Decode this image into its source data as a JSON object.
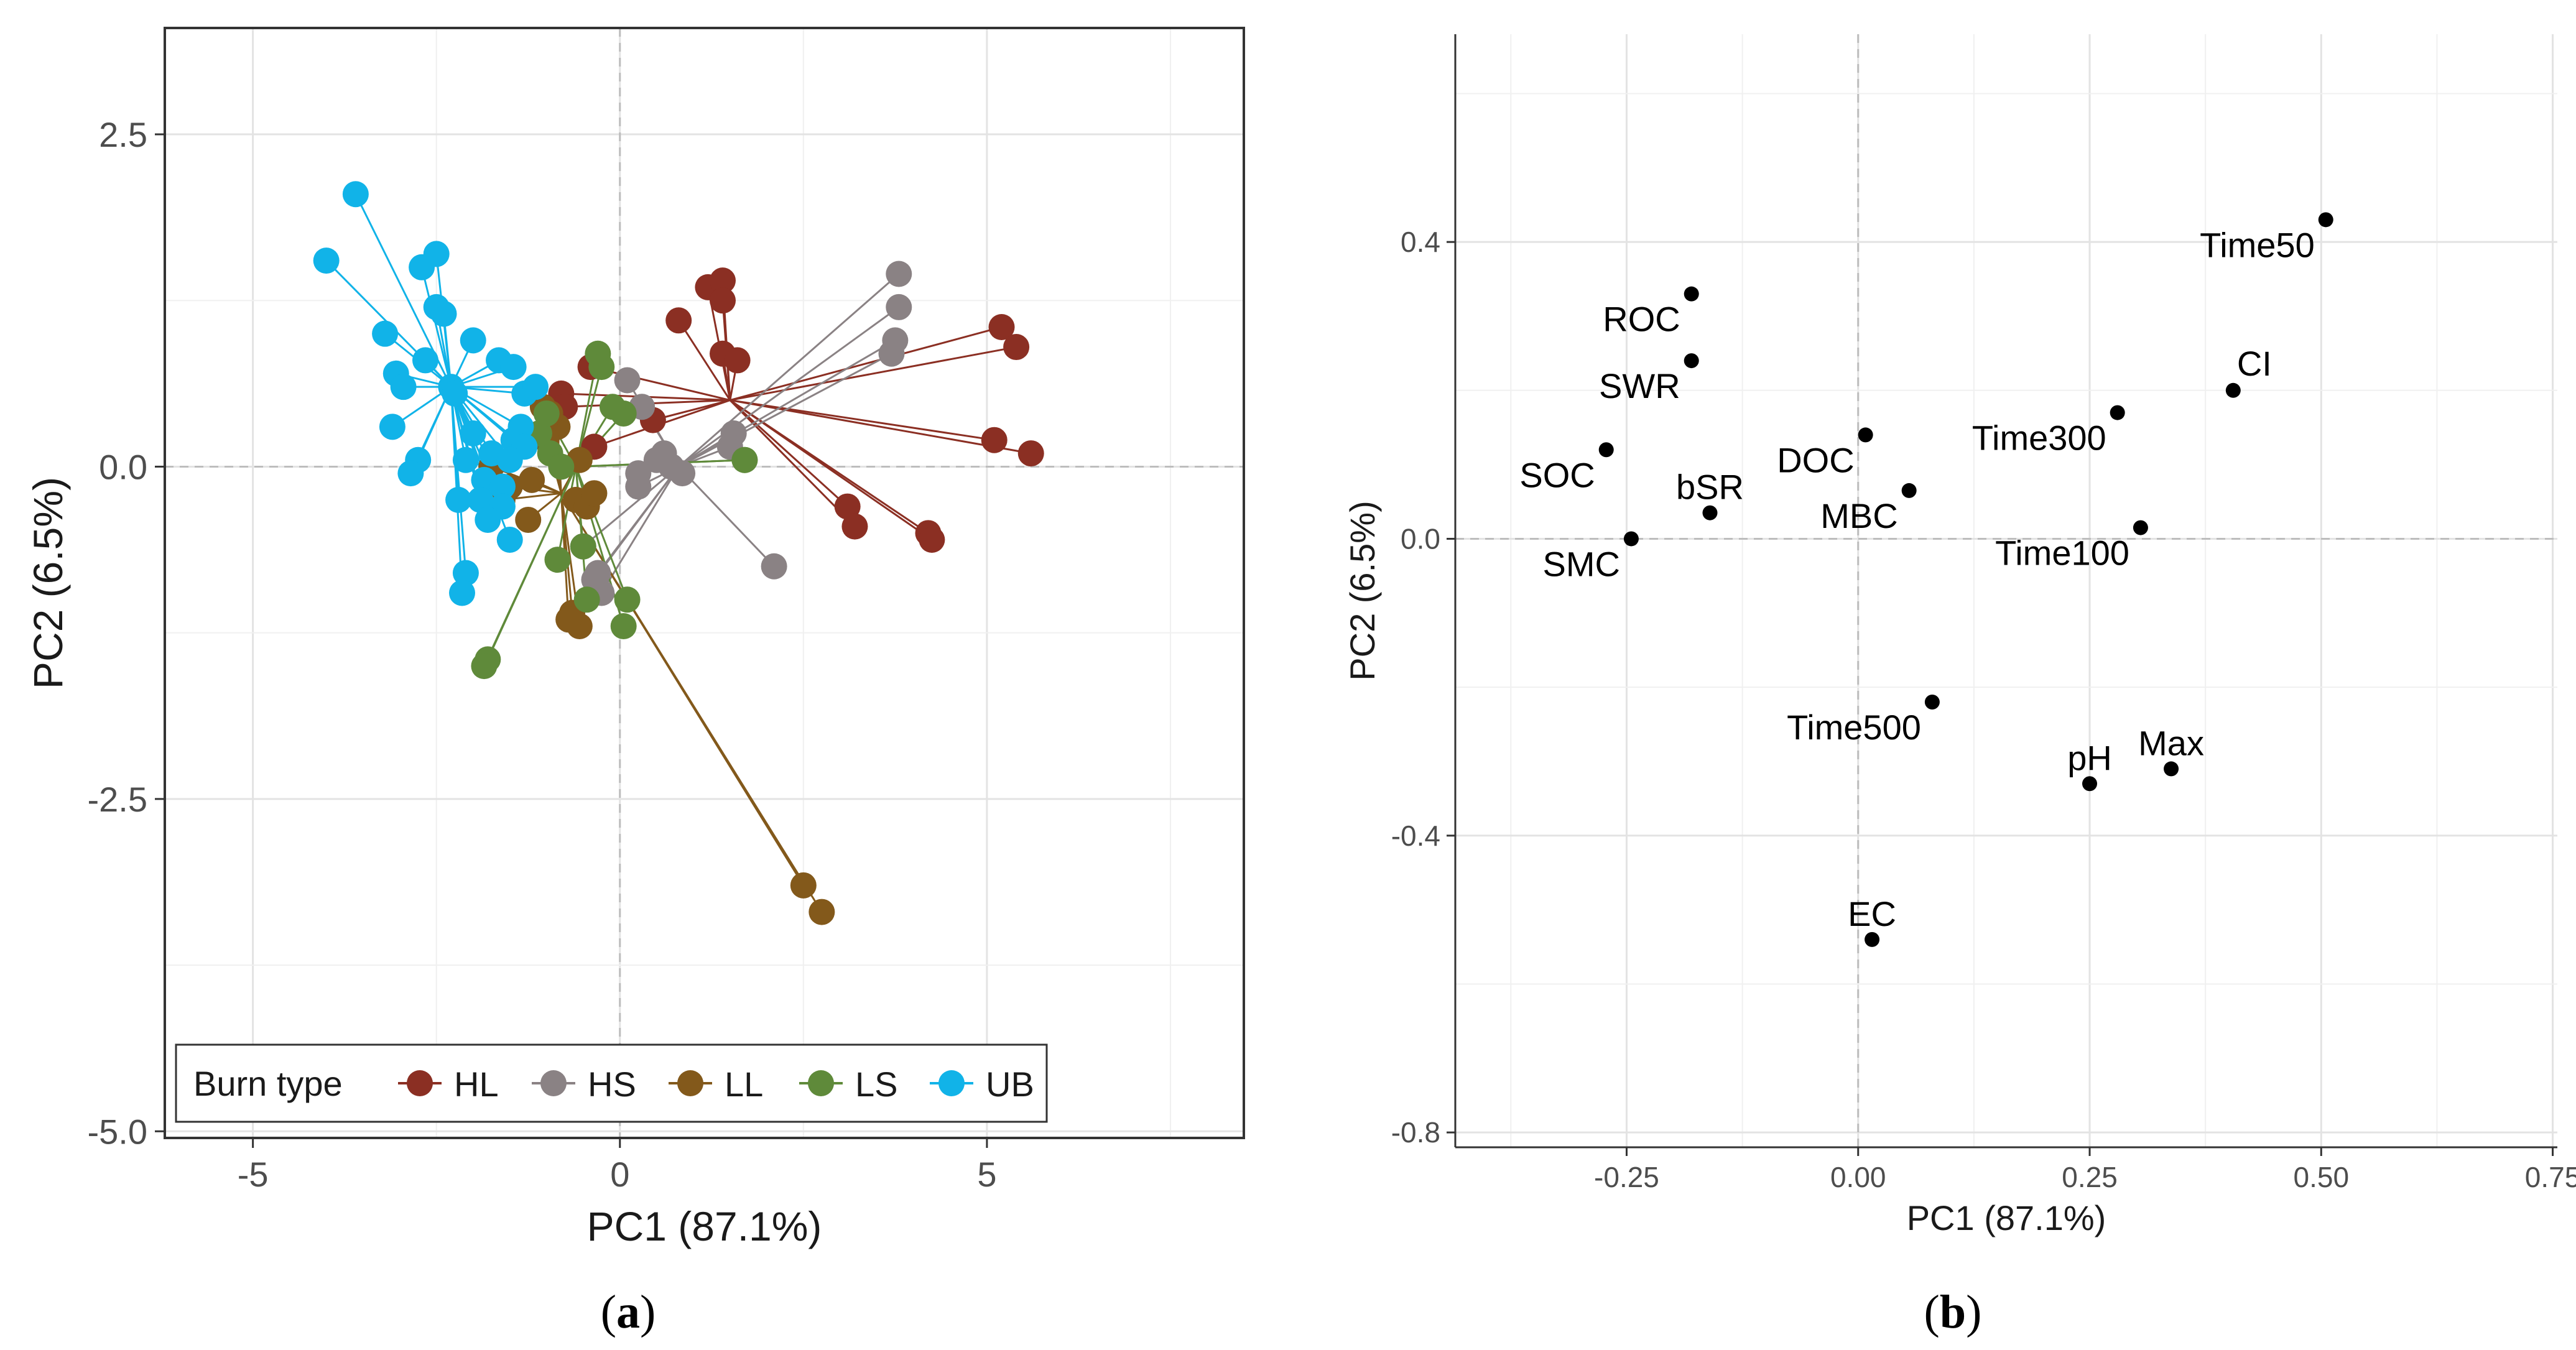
{
  "chart_data": [
    {
      "type": "scatter",
      "panel_label": "(a)",
      "caption_letter": "a",
      "xlabel": "PC1 (87.1%)",
      "ylabel": "PC2 (6.5%)",
      "xlim": [
        -6.2,
        8.5
      ],
      "ylim": [
        -5.05,
        3.3
      ],
      "xticks": [
        -5,
        0,
        5
      ],
      "yticks": [
        2.5,
        0.0,
        -2.5,
        -5.0
      ],
      "xtick_labels": [
        "-5",
        "0",
        "5"
      ],
      "ytick_labels": [
        "2.5",
        "0.0",
        "-2.5",
        "-5.0"
      ],
      "grid": true,
      "legend_position": "bottom-left",
      "legend_title": "Burn type",
      "series": [
        {
          "name": "HL",
          "color": "#8b2f23",
          "centroid": [
            1.5,
            0.5
          ],
          "points": [
            [
              1.2,
              1.35
            ],
            [
              1.4,
              1.4
            ],
            [
              1.4,
              1.25
            ],
            [
              0.8,
              1.1
            ],
            [
              1.4,
              0.85
            ],
            [
              1.6,
              0.8
            ],
            [
              5.2,
              1.05
            ],
            [
              5.4,
              0.9
            ],
            [
              5.1,
              0.2
            ],
            [
              5.6,
              0.1
            ],
            [
              3.1,
              -0.3
            ],
            [
              3.2,
              -0.45
            ],
            [
              4.2,
              -0.5
            ],
            [
              4.25,
              -0.55
            ],
            [
              -0.8,
              0.55
            ],
            [
              -0.4,
              0.75
            ],
            [
              0.45,
              0.35
            ],
            [
              -0.75,
              0.45
            ],
            [
              -0.35,
              0.15
            ]
          ]
        },
        {
          "name": "HS",
          "color": "#8a8284",
          "centroid": [
            0.8,
            0.0
          ],
          "points": [
            [
              3.8,
              1.45
            ],
            [
              3.8,
              1.2
            ],
            [
              3.75,
              0.95
            ],
            [
              3.7,
              0.85
            ],
            [
              0.1,
              0.65
            ],
            [
              0.3,
              0.45
            ],
            [
              1.55,
              0.25
            ],
            [
              1.5,
              0.15
            ],
            [
              0.5,
              0.05
            ],
            [
              0.6,
              0.1
            ],
            [
              0.7,
              0.0
            ],
            [
              0.25,
              -0.05
            ],
            [
              0.85,
              -0.05
            ],
            [
              0.25,
              -0.15
            ],
            [
              2.1,
              -0.75
            ],
            [
              -0.5,
              -0.6
            ],
            [
              -0.3,
              -0.8
            ],
            [
              -0.25,
              -0.95
            ],
            [
              -0.35,
              -0.85
            ]
          ]
        },
        {
          "name": "LL",
          "color": "#83591b",
          "centroid": [
            -0.8,
            -0.2
          ],
          "points": [
            [
              -1.75,
              0.0
            ],
            [
              -1.5,
              -0.15
            ],
            [
              -1.6,
              -0.25
            ],
            [
              -1.2,
              -0.1
            ],
            [
              -1.25,
              -0.4
            ],
            [
              -0.6,
              -0.25
            ],
            [
              -0.45,
              -0.3
            ],
            [
              -0.85,
              0.3
            ],
            [
              -1.0,
              0.2
            ],
            [
              -0.55,
              0.05
            ],
            [
              -0.35,
              -0.2
            ],
            [
              -1.05,
              0.45
            ],
            [
              -0.95,
              0.4
            ],
            [
              -0.65,
              -1.1
            ],
            [
              -0.55,
              -1.2
            ],
            [
              -0.7,
              -1.15
            ],
            [
              2.5,
              -3.15
            ],
            [
              2.75,
              -3.35
            ]
          ]
        },
        {
          "name": "LS",
          "color": "#5f8a3a",
          "centroid": [
            -0.6,
            0.0
          ],
          "points": [
            [
              -0.3,
              0.85
            ],
            [
              -0.25,
              0.75
            ],
            [
              0.05,
              0.4
            ],
            [
              -0.1,
              0.45
            ],
            [
              1.7,
              0.05
            ],
            [
              1.7,
              0.05
            ],
            [
              -0.95,
              0.1
            ],
            [
              -1.1,
              0.25
            ],
            [
              -1.0,
              0.4
            ],
            [
              -0.8,
              0.0
            ],
            [
              -0.5,
              -0.6
            ],
            [
              -0.85,
              -0.7
            ],
            [
              -0.45,
              -1.0
            ],
            [
              0.1,
              -1.0
            ],
            [
              0.05,
              -1.2
            ],
            [
              -1.8,
              -1.45
            ],
            [
              -1.85,
              -1.5
            ]
          ]
        },
        {
          "name": "UB",
          "color": "#11b3e8",
          "centroid": [
            -2.3,
            0.6
          ],
          "points": [
            [
              -3.6,
              2.05
            ],
            [
              -4.0,
              1.55
            ],
            [
              -2.5,
              1.6
            ],
            [
              -2.7,
              1.5
            ],
            [
              -2.5,
              1.2
            ],
            [
              -2.4,
              1.15
            ],
            [
              -3.2,
              1.0
            ],
            [
              -2.0,
              0.95
            ],
            [
              -2.65,
              0.8
            ],
            [
              -1.65,
              0.8
            ],
            [
              -3.05,
              0.7
            ],
            [
              -2.95,
              0.6
            ],
            [
              -2.3,
              0.6
            ],
            [
              -1.45,
              0.75
            ],
            [
              -1.3,
              0.55
            ],
            [
              -1.15,
              0.6
            ],
            [
              -2.25,
              0.55
            ],
            [
              -3.1,
              0.3
            ],
            [
              -2.0,
              0.25
            ],
            [
              -1.45,
              0.2
            ],
            [
              -1.35,
              0.3
            ],
            [
              -1.3,
              0.15
            ],
            [
              -1.75,
              0.1
            ],
            [
              -1.5,
              0.05
            ],
            [
              -2.1,
              0.05
            ],
            [
              -2.75,
              0.05
            ],
            [
              -2.85,
              -0.05
            ],
            [
              -1.85,
              -0.1
            ],
            [
              -1.6,
              -0.15
            ],
            [
              -1.9,
              -0.25
            ],
            [
              -1.6,
              -0.3
            ],
            [
              -2.2,
              -0.25
            ],
            [
              -1.8,
              -0.4
            ],
            [
              -1.5,
              -0.55
            ],
            [
              -2.1,
              -0.8
            ],
            [
              -2.15,
              -0.95
            ]
          ]
        }
      ]
    },
    {
      "type": "scatter",
      "panel_label": "(b)",
      "caption_letter": "b",
      "xlabel": "PC1 (87.1%)",
      "ylabel": "PC2 (6.5%)",
      "xlim": [
        -0.435,
        0.755
      ],
      "ylim": [
        -0.82,
        0.68
      ],
      "xticks": [
        -0.25,
        0.0,
        0.25,
        0.5,
        0.75
      ],
      "yticks": [
        0.4,
        0.0,
        -0.4,
        -0.8
      ],
      "xtick_labels": [
        "-0.25",
        "0.00",
        "0.25",
        "0.50",
        "0.75"
      ],
      "ytick_labels": [
        "0.4",
        "0.0",
        "-0.4",
        "-0.8"
      ],
      "grid": true,
      "points": [
        {
          "label": "Time50",
          "x": 0.505,
          "y": 0.43,
          "anchor": "end"
        },
        {
          "label": "ROC",
          "x": -0.18,
          "y": 0.33,
          "anchor": "end"
        },
        {
          "label": "SWR",
          "x": -0.18,
          "y": 0.24,
          "anchor": "end"
        },
        {
          "label": "CI",
          "x": 0.405,
          "y": 0.2,
          "anchor": "start"
        },
        {
          "label": "Time300",
          "x": 0.28,
          "y": 0.17,
          "anchor": "end"
        },
        {
          "label": "DOC",
          "x": 0.008,
          "y": 0.14,
          "anchor": "end"
        },
        {
          "label": "SOC",
          "x": -0.272,
          "y": 0.12,
          "anchor": "end"
        },
        {
          "label": "bSR",
          "x": -0.16,
          "y": 0.035,
          "anchor": "middle"
        },
        {
          "label": "MBC",
          "x": 0.055,
          "y": 0.065,
          "anchor": "end"
        },
        {
          "label": "SMC",
          "x": -0.245,
          "y": 0.0,
          "anchor": "end"
        },
        {
          "label": "Time100",
          "x": 0.305,
          "y": 0.015,
          "anchor": "end"
        },
        {
          "label": "Time500",
          "x": 0.08,
          "y": -0.22,
          "anchor": "end"
        },
        {
          "label": "pH",
          "x": 0.25,
          "y": -0.33,
          "anchor": "middle"
        },
        {
          "label": "Max",
          "x": 0.338,
          "y": -0.31,
          "anchor": "middle"
        },
        {
          "label": "EC",
          "x": 0.015,
          "y": -0.54,
          "anchor": "middle"
        }
      ]
    }
  ]
}
